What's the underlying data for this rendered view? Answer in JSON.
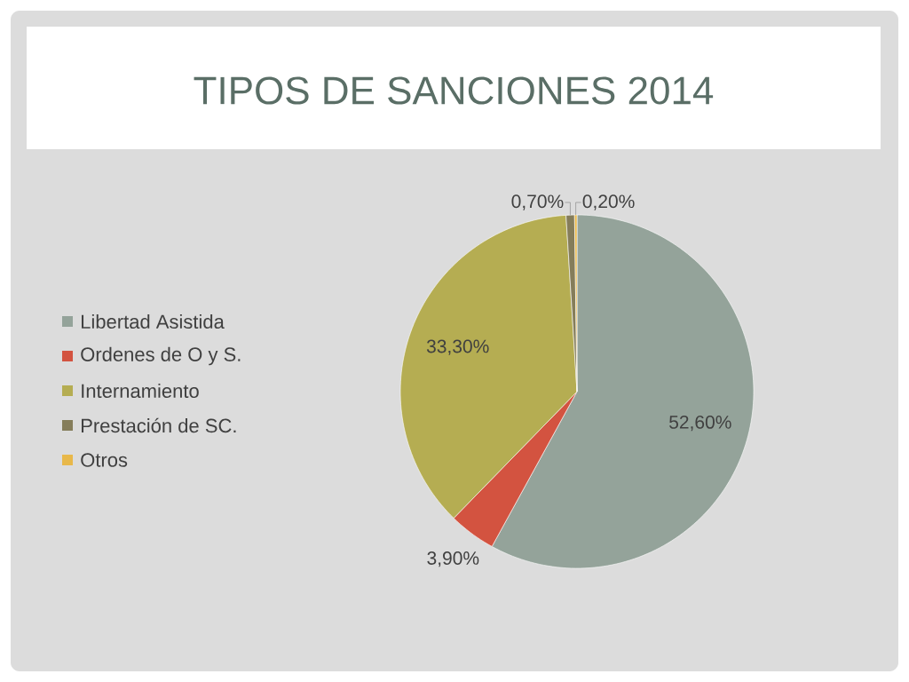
{
  "chart_data": {
    "type": "pie",
    "title": "TIPOS DE SANCIONES 2014",
    "categories": [
      "Libertad Asistida",
      "Ordenes de O y S.",
      "Internamiento",
      "Prestación de SC.",
      "Otros"
    ],
    "values": [
      52.6,
      3.9,
      33.3,
      0.7,
      0.2
    ],
    "value_labels": [
      "52,60%",
      "3,90%",
      "33,30%",
      "0,70%",
      "0,20%"
    ],
    "colors": [
      "#94a39a",
      "#d35340",
      "#b5ad52",
      "#857d5a",
      "#e8b84a"
    ],
    "legend": "left"
  }
}
